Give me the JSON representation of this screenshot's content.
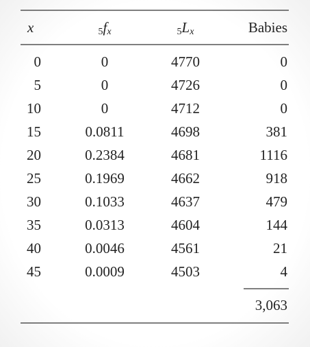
{
  "table": {
    "header": [
      {
        "main": "x"
      },
      {
        "pre": "5",
        "main": "f",
        "sub": "x"
      },
      {
        "pre": "5",
        "main": "L",
        "sub": "x"
      },
      {
        "text": "Babies"
      }
    ],
    "rows": [
      [
        "0",
        "0",
        "4770",
        "0"
      ],
      [
        "5",
        "0",
        "4726",
        "0"
      ],
      [
        "10",
        "0",
        "4712",
        "0"
      ],
      [
        "15",
        "0.0811",
        "4698",
        "381"
      ],
      [
        "20",
        "0.2384",
        "4681",
        "1116"
      ],
      [
        "25",
        "0.1969",
        "4662",
        "918"
      ],
      [
        "30",
        "0.1033",
        "4637",
        "479"
      ],
      [
        "35",
        "0.0313",
        "4604",
        "144"
      ],
      [
        "40",
        "0.0046",
        "4561",
        "21"
      ],
      [
        "45",
        "0.0009",
        "4503",
        "4"
      ]
    ],
    "total": "3,063"
  }
}
